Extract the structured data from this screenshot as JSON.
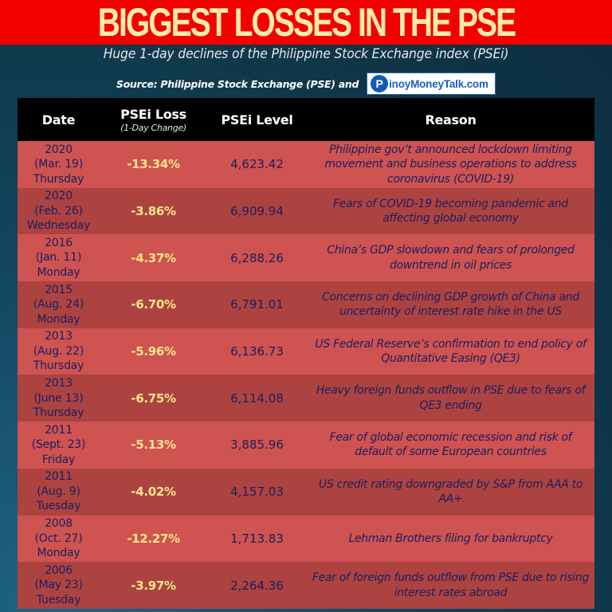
{
  "title": "BIGGEST LOSSES IN THE PSE",
  "subtitle": "Huge 1-day declines of the Philippine Stock Exchange index (PSEi)",
  "source": {
    "label": "Source: Philippine Stock Exchange (PSE) and",
    "logo_icon": "P",
    "logo_text": "inoyMoneyTalk.com"
  },
  "colors": {
    "banner": "#f50000",
    "title_text": "#fdebaa",
    "header_bg": "#000000",
    "row_light": "#cf5350",
    "row_dark": "#ad4341",
    "loss_text": "#fbe58a",
    "body_text": "#1b1e5e"
  },
  "table": {
    "headers": {
      "date": "Date",
      "loss": "PSEi Loss",
      "loss_sub": "(1-Day Change)",
      "level": "PSEi Level",
      "reason": "Reason"
    },
    "rows": [
      {
        "year": "2020",
        "date": "(Mar. 19)",
        "day": "Thursday",
        "loss": "-13.34%",
        "level": "4,623.42",
        "reason": "Philippine gov’t announced lockdown limiting movement and business operations to address coronavirus (COVID-19)"
      },
      {
        "year": "2020",
        "date": "(Feb. 26)",
        "day": "Wednesday",
        "loss": "-3.86%",
        "level": "6,909.94",
        "reason": "Fears of COVID-19 becoming pandemic and affecting global economy"
      },
      {
        "year": "2016",
        "date": "(Jan. 11)",
        "day": "Monday",
        "loss": "-4.37%",
        "level": "6,288.26",
        "reason": "China’s GDP slowdown and fears of prolonged downtrend in oil prices"
      },
      {
        "year": "2015",
        "date": "(Aug. 24)",
        "day": "Monday",
        "loss": "-6.70%",
        "level": "6,791.01",
        "reason": "Concerns on declining GDP growth of China and uncertainty of interest rate hike in the US"
      },
      {
        "year": "2013",
        "date": "(Aug. 22)",
        "day": "Thursday",
        "loss": "-5.96%",
        "level": "6,136.73",
        "reason": "US Federal Reserve’s confirmation to end policy of Quantitative Easing (QE3)"
      },
      {
        "year": "2013",
        "date": "(June 13)",
        "day": "Thursday",
        "loss": "-6.75%",
        "level": "6,114.08",
        "reason": "Heavy foreign funds outflow in PSE due to fears of QE3 ending"
      },
      {
        "year": "2011",
        "date": "(Sept. 23)",
        "day": "Friday",
        "loss": "-5.13%",
        "level": "3,885.96",
        "reason": "Fear of global economic recession and risk of default of some European countries"
      },
      {
        "year": "2011",
        "date": "(Aug. 9)",
        "day": "Tuesday",
        "loss": "-4.02%",
        "level": "4,157.03",
        "reason": "US credit rating downgraded by S&P from AAA to AA+"
      },
      {
        "year": "2008",
        "date": "(Oct. 27)",
        "day": "Monday",
        "loss": "-12.27%",
        "level": "1,713.83",
        "reason": "Lehman Brothers filing for bankruptcy"
      },
      {
        "year": "2006",
        "date": "(May 23)",
        "day": "Tuesday",
        "loss": "-3.97%",
        "level": "2,264.36",
        "reason": "Fear of foreign funds outflow from PSE due to rising interest rates abroad"
      }
    ]
  }
}
